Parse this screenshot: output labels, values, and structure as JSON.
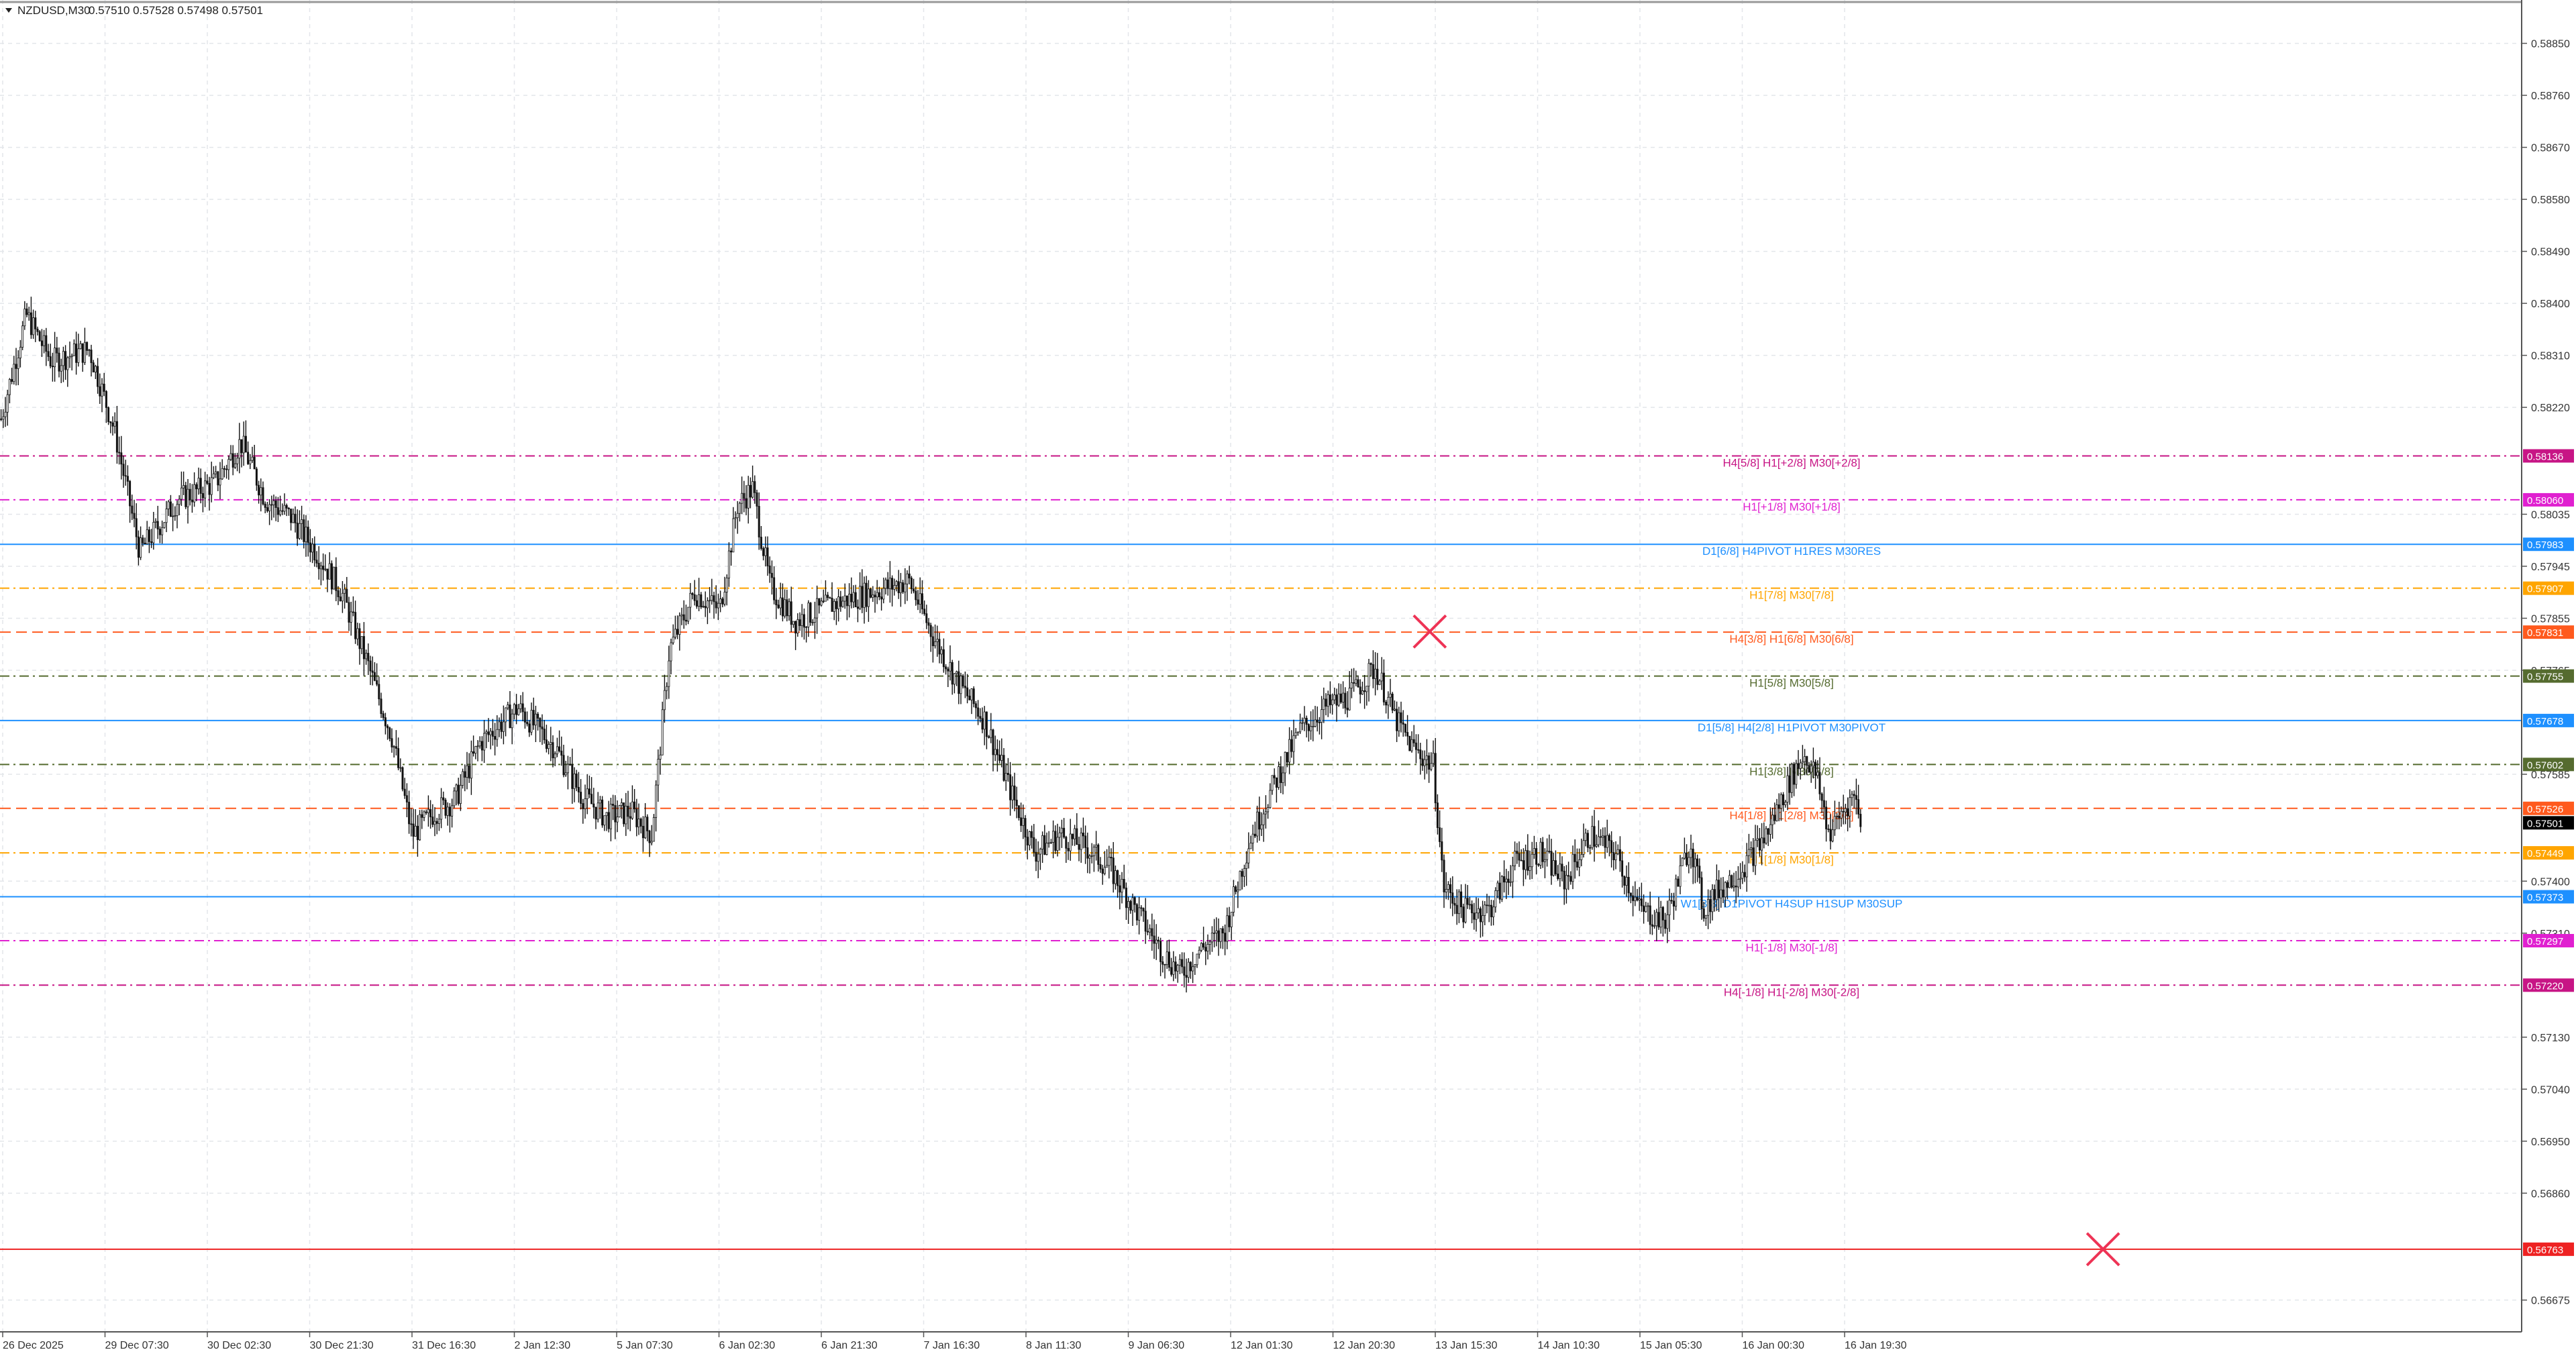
{
  "header": {
    "symbol": "NZDUSD,M30",
    "ohlc": "0.57510 0.57528 0.57498 0.57501",
    "collapse_icon": "triangle-down-icon"
  },
  "colors": {
    "background": "#ffffff",
    "grid": "#e3e6ea",
    "axis": "#555555",
    "candle": "#111111",
    "cross_marker": "#ee3355"
  },
  "chart_data": {
    "type": "candlestick",
    "symbol": "NZDUSD",
    "timeframe": "M30",
    "y_ticks": [
      "0.58850",
      "0.58760",
      "0.58670",
      "0.58580",
      "0.58490",
      "0.58400",
      "0.58310",
      "0.58220",
      "0.58035",
      "0.57945",
      "0.57855",
      "0.57765",
      "0.57585",
      "0.57400",
      "0.57310",
      "0.57130",
      "0.57040",
      "0.56950",
      "0.56860",
      "0.56675"
    ],
    "x_ticks": [
      "26 Dec 2025",
      "29 Dec 07:30",
      "30 Dec 02:30",
      "30 Dec 21:30",
      "31 Dec 16:30",
      "2 Jan 12:30",
      "5 Jan 07:30",
      "6 Jan 02:30",
      "6 Jan 21:30",
      "7 Jan 16:30",
      "8 Jan 11:30",
      "9 Jan 06:30",
      "12 Jan 01:30",
      "12 Jan 20:30",
      "13 Jan 15:30",
      "14 Jan 10:30",
      "15 Jan 05:30",
      "16 Jan 00:30",
      "16 Jan 19:30"
    ],
    "ylim": [
      0.5662,
      0.58925
    ],
    "price_path": [
      {
        "x": 0,
        "y": 0.582
      },
      {
        "x": 0.01,
        "y": 0.5838
      },
      {
        "x": 0.02,
        "y": 0.583
      },
      {
        "x": 0.035,
        "y": 0.5832
      },
      {
        "x": 0.045,
        "y": 0.5818
      },
      {
        "x": 0.055,
        "y": 0.5797
      },
      {
        "x": 0.07,
        "y": 0.5806
      },
      {
        "x": 0.085,
        "y": 0.5809
      },
      {
        "x": 0.095,
        "y": 0.5816
      },
      {
        "x": 0.105,
        "y": 0.5806
      },
      {
        "x": 0.115,
        "y": 0.5803
      },
      {
        "x": 0.125,
        "y": 0.5797
      },
      {
        "x": 0.135,
        "y": 0.579
      },
      {
        "x": 0.145,
        "y": 0.5778
      },
      {
        "x": 0.155,
        "y": 0.5765
      },
      {
        "x": 0.163,
        "y": 0.5748
      },
      {
        "x": 0.172,
        "y": 0.5752
      },
      {
        "x": 0.18,
        "y": 0.5754
      },
      {
        "x": 0.19,
        "y": 0.5764
      },
      {
        "x": 0.205,
        "y": 0.577
      },
      {
        "x": 0.22,
        "y": 0.5763
      },
      {
        "x": 0.23,
        "y": 0.5755
      },
      {
        "x": 0.24,
        "y": 0.5751
      },
      {
        "x": 0.25,
        "y": 0.5752
      },
      {
        "x": 0.258,
        "y": 0.5748
      },
      {
        "x": 0.265,
        "y": 0.578
      },
      {
        "x": 0.275,
        "y": 0.579
      },
      {
        "x": 0.285,
        "y": 0.5787
      },
      {
        "x": 0.292,
        "y": 0.5805
      },
      {
        "x": 0.298,
        "y": 0.5808
      },
      {
        "x": 0.305,
        "y": 0.5791
      },
      {
        "x": 0.315,
        "y": 0.5785
      },
      {
        "x": 0.33,
        "y": 0.5788
      },
      {
        "x": 0.345,
        "y": 0.579
      },
      {
        "x": 0.36,
        "y": 0.5792
      },
      {
        "x": 0.37,
        "y": 0.5782
      },
      {
        "x": 0.38,
        "y": 0.5774
      },
      {
        "x": 0.39,
        "y": 0.5768
      },
      {
        "x": 0.4,
        "y": 0.5756
      },
      {
        "x": 0.41,
        "y": 0.5745
      },
      {
        "x": 0.42,
        "y": 0.5748
      },
      {
        "x": 0.43,
        "y": 0.5746
      },
      {
        "x": 0.44,
        "y": 0.5742
      },
      {
        "x": 0.45,
        "y": 0.5735
      },
      {
        "x": 0.46,
        "y": 0.5728
      },
      {
        "x": 0.468,
        "y": 0.5724
      },
      {
        "x": 0.475,
        "y": 0.5728
      },
      {
        "x": 0.485,
        "y": 0.5731
      },
      {
        "x": 0.495,
        "y": 0.5747
      },
      {
        "x": 0.505,
        "y": 0.5757
      },
      {
        "x": 0.515,
        "y": 0.5766
      },
      {
        "x": 0.525,
        "y": 0.577
      },
      {
        "x": 0.535,
        "y": 0.5772
      },
      {
        "x": 0.545,
        "y": 0.5777
      },
      {
        "x": 0.553,
        "y": 0.5768
      },
      {
        "x": 0.56,
        "y": 0.5763
      },
      {
        "x": 0.568,
        "y": 0.576
      },
      {
        "x": 0.572,
        "y": 0.5739
      },
      {
        "x": 0.58,
        "y": 0.5735
      },
      {
        "x": 0.59,
        "y": 0.5735
      },
      {
        "x": 0.6,
        "y": 0.5743
      },
      {
        "x": 0.61,
        "y": 0.5745
      },
      {
        "x": 0.62,
        "y": 0.574
      },
      {
        "x": 0.63,
        "y": 0.5748
      },
      {
        "x": 0.64,
        "y": 0.5745
      },
      {
        "x": 0.65,
        "y": 0.5735
      },
      {
        "x": 0.66,
        "y": 0.5733
      },
      {
        "x": 0.67,
        "y": 0.5747
      },
      {
        "x": 0.675,
        "y": 0.5735
      },
      {
        "x": 0.68,
        "y": 0.5738
      },
      {
        "x": 0.69,
        "y": 0.5742
      },
      {
        "x": 0.7,
        "y": 0.5748
      },
      {
        "x": 0.71,
        "y": 0.5758
      },
      {
        "x": 0.715,
        "y": 0.5762
      },
      {
        "x": 0.72,
        "y": 0.5758
      },
      {
        "x": 0.725,
        "y": 0.5748
      },
      {
        "x": 0.73,
        "y": 0.5752
      },
      {
        "x": 0.735,
        "y": 0.5755
      },
      {
        "x": 0.738,
        "y": 0.575
      }
    ],
    "levels": [
      {
        "price": 0.58136,
        "label": "H4[5/8] H1[+2/8] M30[+2/8]",
        "color": "#c71585",
        "style": "dash-dot",
        "tag": "0.58136"
      },
      {
        "price": 0.5806,
        "label": "H1[+1/8] M30[+1/8]",
        "color": "#e020d0",
        "style": "dash-dot",
        "tag": "0.58060"
      },
      {
        "price": 0.57983,
        "label": "D1[6/8] H4PIVOT H1RES M30RES",
        "color": "#1e90ff",
        "style": "solid",
        "tag": "0.57983"
      },
      {
        "price": 0.57907,
        "label": "H1[7/8] M30[7/8]",
        "color": "#ffa500",
        "style": "dash-dot",
        "tag": "0.57907"
      },
      {
        "price": 0.57831,
        "label": "H4[3/8] H1[6/8] M30[6/8]",
        "color": "#ff5a1e",
        "style": "dash",
        "tag": "0.57831"
      },
      {
        "price": 0.57755,
        "label": "H1[5/8] M30[5/8]",
        "color": "#556b2f",
        "style": "dash-dot",
        "tag": "0.57755"
      },
      {
        "price": 0.57678,
        "label": "D1[5/8] H4[2/8] H1PIVOT M30PIVOT",
        "color": "#1e90ff",
        "style": "solid",
        "tag": "0.57678"
      },
      {
        "price": 0.57602,
        "label": "H1[3/8] M30[3/8]",
        "color": "#556b2f",
        "style": "dash-dot",
        "tag": "0.57602"
      },
      {
        "price": 0.57526,
        "label": "H4[1/8] H1[2/8] M30[2/8]",
        "color": "#ff5a1e",
        "style": "dash",
        "tag": "0.57526"
      },
      {
        "price": 0.57449,
        "label": "H1[1/8] M30[1/8]",
        "color": "#ffa500",
        "style": "dash-dot",
        "tag": "0.57449"
      },
      {
        "price": 0.57373,
        "label": "W1[3/8] D1PIVOT H4SUP H1SUP M30SUP",
        "color": "#1e90ff",
        "style": "solid",
        "tag": "0.57373"
      },
      {
        "price": 0.57297,
        "label": "H1[-1/8] M30[-1/8]",
        "color": "#e020d0",
        "style": "dash-dot",
        "tag": "0.57297"
      },
      {
        "price": 0.5722,
        "label": "H4[-1/8] H1[-2/8] M30[-2/8]",
        "color": "#c71585",
        "style": "dash-dot",
        "tag": "0.57220"
      },
      {
        "price": 0.56763,
        "label": "",
        "color": "#ee2222",
        "style": "solid",
        "tag": "0.56763"
      }
    ],
    "current_price": {
      "price": 0.57501,
      "tag": "0.57501",
      "color": "#000000"
    },
    "markers": [
      {
        "type": "cross",
        "x": 0.567,
        "price": 0.57832,
        "color": "#ee3355"
      },
      {
        "type": "cross",
        "x": 0.834,
        "price": 0.56763,
        "color": "#ee3355"
      }
    ]
  }
}
